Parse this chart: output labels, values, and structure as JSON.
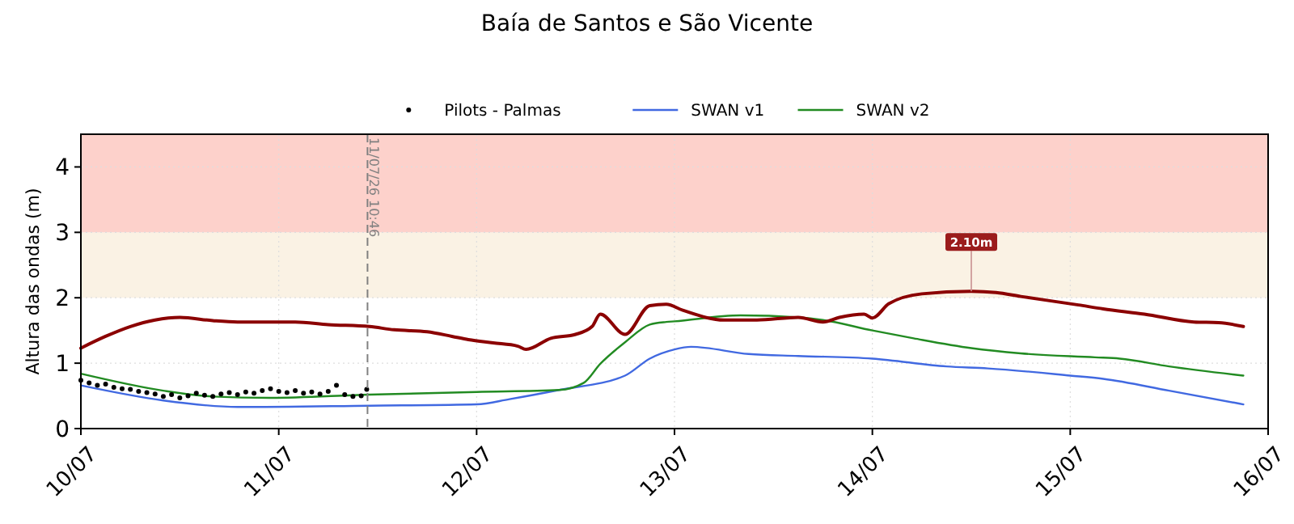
{
  "chart_data": {
    "type": "line",
    "title": "Baía de Santos e São Vicente",
    "ylabel": "Altura das ondas (m)",
    "xlim": [
      "--07-10",
      "--07-16"
    ],
    "xticks": [
      {
        "value": "--07-10",
        "label": "10/07"
      },
      {
        "value": "--07-11",
        "label": "11/07"
      },
      {
        "value": "--07-12",
        "label": "12/07"
      },
      {
        "value": "--07-13",
        "label": "13/07"
      },
      {
        "value": "--07-14",
        "label": "14/07"
      },
      {
        "value": "--07-15",
        "label": "15/07"
      },
      {
        "value": "--07-16",
        "label": "16/07"
      }
    ],
    "ylim": [
      0,
      4.5
    ],
    "yticks": [
      0,
      1,
      2,
      3,
      4
    ],
    "grid": true,
    "legend": "top",
    "bands": [
      {
        "axis": "y",
        "from": 2,
        "to": 3,
        "color": "#faf2e4"
      },
      {
        "axis": "y",
        "from": 3,
        "to": 4.5,
        "color": "#fdd1cb"
      }
    ],
    "ref_lines": [
      {
        "axis": "x",
        "value": "--07-11T10:46",
        "label": "11/07/26 10:46",
        "color": "#808080",
        "line_style": "dashed"
      }
    ],
    "annotations": [
      {
        "text": "2.10m",
        "x": "--07-14T12:00",
        "y": 2.1
      }
    ],
    "series": [
      {
        "name": "Pilots - Palmas",
        "type": "scatter",
        "marker": "circle",
        "color": "#000000",
        "x": [
          "--07-10T00:00",
          "--07-10T01:00",
          "--07-10T02:00",
          "--07-10T03:00",
          "--07-10T04:00",
          "--07-10T05:00",
          "--07-10T06:00",
          "--07-10T07:00",
          "--07-10T08:00",
          "--07-10T09:00",
          "--07-10T10:00",
          "--07-10T11:00",
          "--07-10T12:00",
          "--07-10T13:00",
          "--07-10T14:00",
          "--07-10T15:00",
          "--07-10T16:00",
          "--07-10T17:00",
          "--07-10T18:00",
          "--07-10T19:00",
          "--07-10T20:00",
          "--07-10T21:00",
          "--07-10T22:00",
          "--07-10T23:00",
          "--07-11T00:00",
          "--07-11T01:00",
          "--07-11T02:00",
          "--07-11T03:00",
          "--07-11T04:00",
          "--07-11T05:00",
          "--07-11T06:00",
          "--07-11T07:00",
          "--07-11T08:00",
          "--07-11T09:00",
          "--07-11T10:00",
          "--07-11T10:40"
        ],
        "values": [
          0.74,
          0.7,
          0.66,
          0.68,
          0.63,
          0.61,
          0.6,
          0.57,
          0.55,
          0.53,
          0.49,
          0.52,
          0.47,
          0.5,
          0.54,
          0.51,
          0.49,
          0.53,
          0.55,
          0.52,
          0.56,
          0.54,
          0.58,
          0.61,
          0.57,
          0.55,
          0.58,
          0.54,
          0.56,
          0.53,
          0.57,
          0.66,
          0.52,
          0.49,
          0.5,
          0.6
        ]
      },
      {
        "name": "SWAN v1",
        "color": "#4169e1",
        "x": [
          "--07-10T00:00",
          "--07-10T10:00",
          "--07-10T19:00",
          "--07-11T11:00",
          "--07-12T00:00",
          "--07-12T04:00",
          "--07-12T10:00",
          "--07-12T18:00",
          "--07-12T21:00",
          "--07-13T00:00",
          "--07-13T02:00",
          "--07-13T09:00",
          "--07-13T15:00",
          "--07-14T00:00",
          "--07-14T09:00",
          "--07-14T14:00",
          "--07-15T00:00",
          "--07-15T04:00",
          "--07-15T12:00",
          "--07-15T21:00"
        ],
        "values": [
          0.66,
          0.43,
          0.33,
          0.35,
          0.37,
          0.45,
          0.59,
          0.81,
          1.07,
          1.21,
          1.25,
          1.14,
          1.11,
          1.07,
          0.95,
          0.92,
          0.81,
          0.76,
          0.58,
          0.37
        ]
      },
      {
        "name": "SWAN v2",
        "color": "#228b22",
        "x": [
          "--07-10T00:00",
          "--07-10T10:00",
          "--07-10T16:00",
          "--07-10T23:00",
          "--07-11T11:00",
          "--07-11T18:00",
          "--07-12T00:00",
          "--07-12T10:00",
          "--07-12T13:00",
          "--07-12T15:00",
          "--07-12T18:00",
          "--07-12T21:00",
          "--07-12T23:00",
          "--07-13T00:00",
          "--07-13T08:00",
          "--07-13T15:00",
          "--07-13T18:00",
          "--07-14T00:00",
          "--07-14T05:00",
          "--07-14T12:00",
          "--07-14T18:00",
          "--07-15T03:00",
          "--07-15T06:00",
          "--07-15T12:00",
          "--07-15T21:00"
        ],
        "values": [
          0.84,
          0.58,
          0.49,
          0.47,
          0.52,
          0.54,
          0.56,
          0.59,
          0.7,
          0.99,
          1.32,
          1.59,
          1.63,
          1.64,
          1.73,
          1.7,
          1.66,
          1.5,
          1.38,
          1.23,
          1.15,
          1.09,
          1.07,
          0.95,
          0.81
        ]
      },
      {
        "color": "#8b0000",
        "x": [
          "--07-10T00:00",
          "--07-10T03:00",
          "--07-10T06:00",
          "--07-10T09:00",
          "--07-10T12:00",
          "--07-10T16:00",
          "--07-10T19:00",
          "--07-11T02:00",
          "--07-11T06:00",
          "--07-11T11:00",
          "--07-11T14:00",
          "--07-11T18:00",
          "--07-11T21:00",
          "--07-11T23:00",
          "--07-12T02:00",
          "--07-12T05:00",
          "--07-12T06:00",
          "--07-12T09:00",
          "--07-12T12:00",
          "--07-12T14:00",
          "--07-12T15:00",
          "--07-12T18:00",
          "--07-12T21:00",
          "--07-12T23:00",
          "--07-13T01:00",
          "--07-13T06:00",
          "--07-13T10:00",
          "--07-13T15:00",
          "--07-13T18:00",
          "--07-13T20:00",
          "--07-13T23:00",
          "--07-14T00:00",
          "--07-14T02:00",
          "--07-14T06:00",
          "--07-14T12:00",
          "--07-14T15:00",
          "--07-14T18:00",
          "--07-15T01:00",
          "--07-15T04:00",
          "--07-15T09:00",
          "--07-15T15:00",
          "--07-15T18:00",
          "--07-15T21:00"
        ],
        "values": [
          1.23,
          1.41,
          1.56,
          1.66,
          1.7,
          1.65,
          1.63,
          1.63,
          1.59,
          1.56,
          1.51,
          1.48,
          1.41,
          1.36,
          1.31,
          1.26,
          1.21,
          1.38,
          1.44,
          1.56,
          1.75,
          1.44,
          1.88,
          1.9,
          1.81,
          1.66,
          1.66,
          1.7,
          1.63,
          1.7,
          1.75,
          1.69,
          1.91,
          2.06,
          2.1,
          2.08,
          2.02,
          1.89,
          1.83,
          1.75,
          1.63,
          1.62,
          1.56
        ]
      }
    ]
  }
}
